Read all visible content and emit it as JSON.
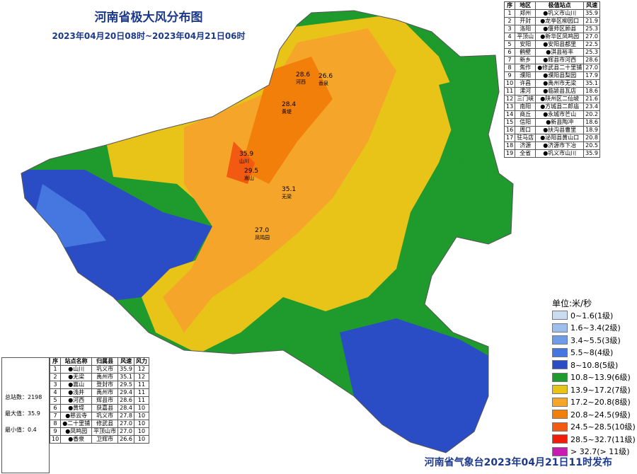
{
  "header": {
    "title": "河南省极大风分布图",
    "subtitle": "2023年04月20日08时~2023年04月21日06时"
  },
  "region_table": {
    "columns": [
      "序",
      "地区",
      "极值站点",
      "风速"
    ],
    "rows": [
      [
        "1",
        "郑州",
        "●巩义市山川",
        "35.9"
      ],
      [
        "2",
        "开封",
        "●龙亭区柳园口",
        "21.9"
      ],
      [
        "3",
        "洛阳",
        "●偃师区顾县",
        "25.3"
      ],
      [
        "4",
        "平顶山",
        "●新华区凤鸣园",
        "27.0"
      ],
      [
        "5",
        "安阳",
        "●安阳县都里",
        "22.5"
      ],
      [
        "6",
        "鹤壁",
        "●淇县裕丰",
        "25.3"
      ],
      [
        "7",
        "新乡",
        "●辉县市河西",
        "28.6"
      ],
      [
        "8",
        "焦作",
        "●修武县二十里铺",
        "27.0"
      ],
      [
        "9",
        "濮阳",
        "●濮阳县梨园",
        "17.9"
      ],
      [
        "10",
        "许昌",
        "●禹州市无梁",
        "35.1"
      ],
      [
        "11",
        "漯河",
        "●临颍县瓦店",
        "18.6"
      ],
      [
        "12",
        "三门峡",
        "●陕州区二仙坡",
        "21.6"
      ],
      [
        "13",
        "南阳",
        "●方城县二郎庙",
        "23.4"
      ],
      [
        "14",
        "商丘",
        "●永城市芒山",
        "20.2"
      ],
      [
        "15",
        "信阳",
        "●新县陶冲",
        "18.6"
      ],
      [
        "16",
        "周口",
        "●扶沟县曹里",
        "18.9"
      ],
      [
        "17",
        "驻马店",
        "●泌阳县黄山口",
        "20.8"
      ],
      [
        "18",
        "济源",
        "●济源市下冶",
        "20.5"
      ],
      [
        "19",
        "全省",
        "●巩义市山川",
        "35.9"
      ]
    ]
  },
  "station_table": {
    "columns": [
      "序",
      "站点名称",
      "归属县",
      "风速",
      "风力"
    ],
    "rows": [
      [
        "1",
        "●山川",
        "巩义市",
        "35.9",
        "12"
      ],
      [
        "2",
        "●无梁",
        "禹州市",
        "35.1",
        "12"
      ],
      [
        "3",
        "●嵩山",
        "登封市",
        "29.5",
        "11"
      ],
      [
        "4",
        "●浅井",
        "禹州市",
        "29.4",
        "11"
      ],
      [
        "5",
        "●河西",
        "辉县市",
        "28.6",
        "11"
      ],
      [
        "6",
        "●黄堤",
        "获嘉县",
        "28.4",
        "10"
      ],
      [
        "7",
        "●慈云寺",
        "巩义市",
        "27.8",
        "10"
      ],
      [
        "8",
        "●二十里铺",
        "修武县",
        "27.0",
        "10"
      ],
      [
        "9",
        "●凤鸣园",
        "平顶山市",
        "27.0",
        "10"
      ],
      [
        "10",
        "●香泉",
        "卫辉市",
        "26.6",
        "10"
      ]
    ]
  },
  "stats": [
    "总站数：2198",
    "最大值：35.9",
    "最小值：0.4"
  ],
  "legend": {
    "unit": "单位:米/秒",
    "items": [
      {
        "label": "0~1.6(1级)",
        "color": "#c9dcf2"
      },
      {
        "label": "1.6~3.4(2级)",
        "color": "#9dbfee"
      },
      {
        "label": "3.4~5.5(3级)",
        "color": "#6f9ce8"
      },
      {
        "label": "5.5~8(4级)",
        "color": "#4677e0"
      },
      {
        "label": "8~10.8(5级)",
        "color": "#2a4cc4"
      },
      {
        "label": "10.8~13.9(6级)",
        "color": "#1f9a2c"
      },
      {
        "label": "13.9~17.2(7级)",
        "color": "#e8c318"
      },
      {
        "label": "17.2~20.8(8级)",
        "color": "#f5a52a"
      },
      {
        "label": "20.8~24.5(9级)",
        "color": "#f27f0a"
      },
      {
        "label": "24.5~28.5(10级)",
        "color": "#f25a12"
      },
      {
        "label": "28.5~32.7(11级)",
        "color": "#f01d0d"
      },
      {
        "label": "> 32.7(> 11级)",
        "color": "#c81cb0"
      }
    ]
  },
  "map_labels": [
    {
      "value": "35.9",
      "name": "山川"
    },
    {
      "value": "29.5",
      "name": "嵩山"
    },
    {
      "value": "35.1",
      "name": "无梁"
    },
    {
      "value": "28.4",
      "name": "黄堤"
    },
    {
      "value": "28.6",
      "name": "河西"
    },
    {
      "value": "26.6",
      "name": "香泉"
    },
    {
      "value": "27.0",
      "name": "凤鸣园"
    }
  ],
  "footer": "河南省气象台2023年04月21日11时发布"
}
